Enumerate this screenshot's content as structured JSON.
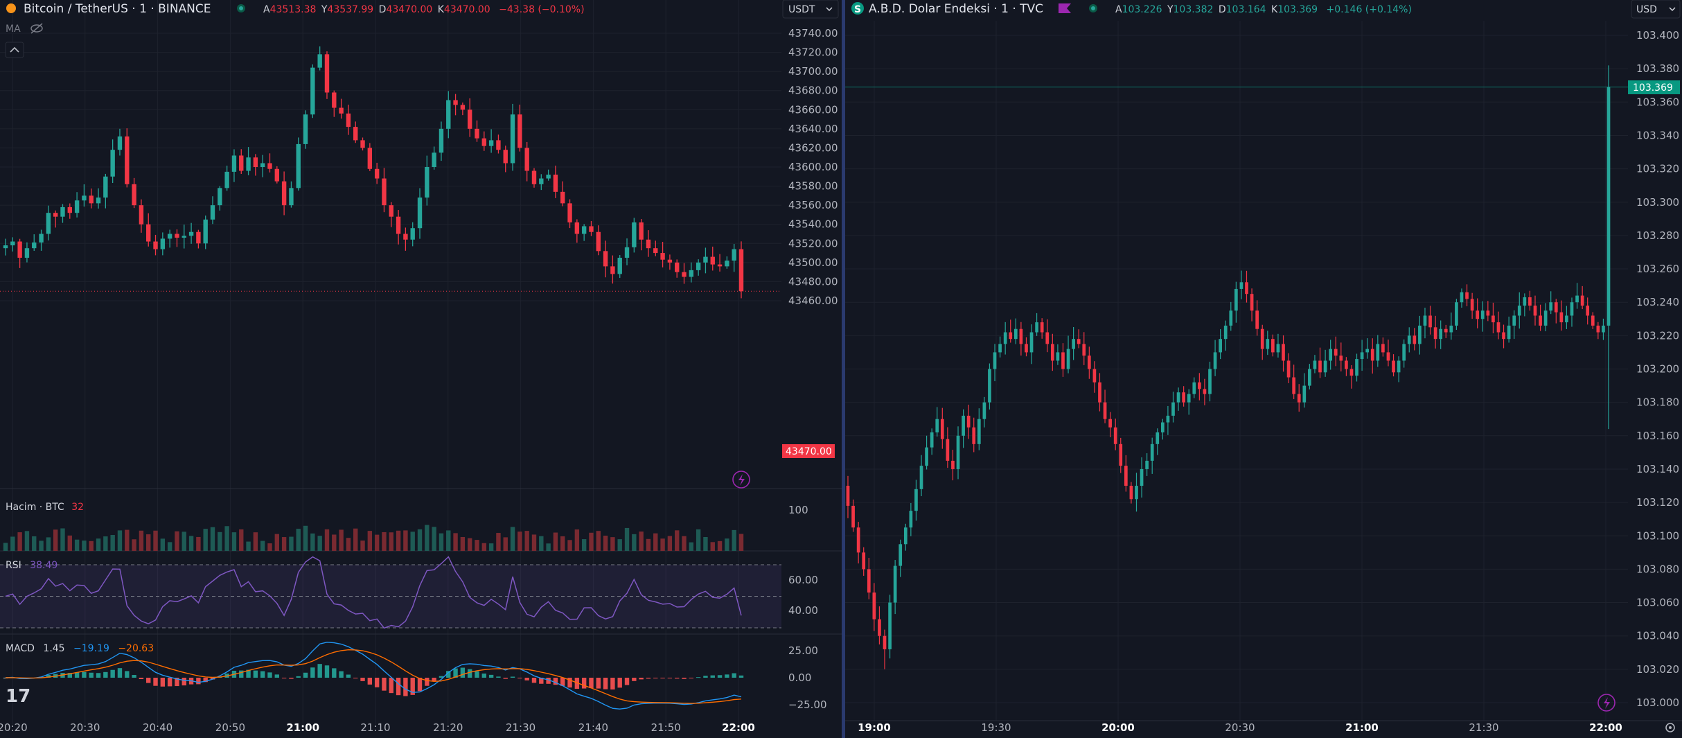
{
  "colors": {
    "bg": "#131722",
    "up": "#26a69a",
    "down": "#f23645",
    "grid": "#1e222d",
    "text": "#b2b5be",
    "rsi": "#7e57c2",
    "macd": "#2196f3",
    "signal": "#ff6d00",
    "divider": "#2a3a6e"
  },
  "left": {
    "title": "Bitcoin / TetherUS · 1 · BINANCE",
    "ohlc": {
      "o_label": "A",
      "o": "43513.38",
      "h_label": "Y",
      "h": "43537.99",
      "l_label": "D",
      "l": "43470.00",
      "c_label": "K",
      "c": "43470.00",
      "chg": "−43.38 (−0.10%)"
    },
    "currency": "USDT",
    "ma_label": "MA",
    "volume": {
      "label": "Hacim · BTC",
      "value": "32",
      "axis_label": "100"
    },
    "rsi": {
      "label": "RSI",
      "value": "38.49",
      "ticks": [
        "60.00",
        "40.00"
      ]
    },
    "macd": {
      "label": "MACD",
      "v1": "1.45",
      "v2": "−19.19",
      "v3": "−20.63",
      "ticks": [
        "25.00",
        "0.00",
        "−25.00"
      ]
    },
    "price_badge": "43470.00",
    "x_ticks": [
      "20:20",
      "20:30",
      "20:40",
      "20:50",
      "21:00",
      "21:10",
      "21:20",
      "21:30",
      "21:40",
      "21:50",
      "22:00"
    ],
    "logo": "17"
  },
  "right": {
    "title": "A.B.D. Dolar Endeksi · 1 · TVC",
    "symbol_badge": "S",
    "ohlc": {
      "o_label": "A",
      "o": "103.226",
      "h_label": "Y",
      "h": "103.382",
      "l_label": "D",
      "l": "103.164",
      "c_label": "K",
      "c": "103.369",
      "chg": "+0.146 (+0.14%)"
    },
    "currency": "USD",
    "price_badge": "103.369",
    "x_ticks": [
      "19:00",
      "19:30",
      "20:00",
      "20:30",
      "21:00",
      "21:30",
      "22:00"
    ]
  },
  "chart_data": [
    {
      "type": "candlestick",
      "title": "Bitcoin / TetherUS · 1 · BINANCE",
      "ylim": [
        43450,
        43760
      ],
      "y_ticks": [
        "43740.00",
        "43720.00",
        "43700.00",
        "43680.00",
        "43660.00",
        "43640.00",
        "43620.00",
        "43600.00",
        "43580.00",
        "43560.00",
        "43540.00",
        "43520.00",
        "43500.00",
        "43480.00",
        "43460.00"
      ],
      "x_ticks": [
        "20:20",
        "20:30",
        "20:40",
        "20:50",
        "21:00",
        "21:10",
        "21:20",
        "21:30",
        "21:40",
        "21:50",
        "22:00"
      ],
      "close": [
        43518,
        43522,
        43505,
        43515,
        43521,
        43530,
        43552,
        43548,
        43558,
        43552,
        43565,
        43570,
        43562,
        43568,
        43590,
        43618,
        43632,
        43582,
        43560,
        43540,
        43522,
        43514,
        43525,
        43530,
        43526,
        43528,
        43532,
        43520,
        43545,
        43560,
        43578,
        43595,
        43612,
        43596,
        43610,
        43600,
        43604,
        43598,
        43585,
        43560,
        43578,
        43624,
        43655,
        43704,
        43718,
        43678,
        43662,
        43656,
        43642,
        43628,
        43620,
        43598,
        43588,
        43560,
        43548,
        43530,
        43524,
        43536,
        43568,
        43600,
        43615,
        43640,
        43670,
        43665,
        43660,
        43640,
        43630,
        43622,
        43628,
        43618,
        43604,
        43655,
        43620,
        43596,
        43582,
        43588,
        43592,
        43574,
        43562,
        43542,
        43530,
        43538,
        43532,
        43512,
        43496,
        43488,
        43505,
        43516,
        43542,
        43524,
        43515,
        43510,
        43503,
        43500,
        43490,
        43485,
        43492,
        43500,
        43506,
        43498,
        43496,
        43502,
        43514,
        43470
      ],
      "open_first": 43515
    },
    {
      "type": "candlestick",
      "title": "A.B.D. Dolar Endeksi · 1 · TVC",
      "ylim": [
        102.99,
        103.41
      ],
      "y_ticks": [
        "103.400",
        "103.380",
        "103.360",
        "103.340",
        "103.320",
        "103.300",
        "103.280",
        "103.260",
        "103.240",
        "103.220",
        "103.200",
        "103.180",
        "103.160",
        "103.140",
        "103.120",
        "103.100",
        "103.080",
        "103.060",
        "103.040",
        "103.020",
        "103.000"
      ],
      "x_ticks": [
        "19:00",
        "19:30",
        "20:00",
        "20:30",
        "21:00",
        "21:30",
        "22:00"
      ],
      "close": [
        103.118,
        103.105,
        103.09,
        103.08,
        103.066,
        103.05,
        103.04,
        103.032,
        103.06,
        103.082,
        103.095,
        103.105,
        103.115,
        103.128,
        103.142,
        103.153,
        103.162,
        103.17,
        103.158,
        103.145,
        103.14,
        103.16,
        103.172,
        103.165,
        103.155,
        103.17,
        103.18,
        103.2,
        103.21,
        103.215,
        103.222,
        103.218,
        103.224,
        103.215,
        103.21,
        103.222,
        103.228,
        103.222,
        103.215,
        103.205,
        103.21,
        103.2,
        103.212,
        103.218,
        103.215,
        103.208,
        103.2,
        103.192,
        103.18,
        103.17,
        103.165,
        103.155,
        103.142,
        103.13,
        103.122,
        103.13,
        103.14,
        103.145,
        103.155,
        103.162,
        103.168,
        103.172,
        103.18,
        103.186,
        103.18,
        103.185,
        103.192,
        103.188,
        103.185,
        103.2,
        103.21,
        103.218,
        103.226,
        103.235,
        103.248,
        103.252,
        103.245,
        103.235,
        103.224,
        103.212,
        103.218,
        103.21,
        103.215,
        103.205,
        103.195,
        103.185,
        103.18,
        103.19,
        103.2,
        103.205,
        103.198,
        103.205,
        103.212,
        103.208,
        103.205,
        103.2,
        103.196,
        103.206,
        103.21,
        103.212,
        103.205,
        103.215,
        103.21,
        103.205,
        103.198,
        103.205,
        103.215,
        103.22,
        103.215,
        103.226,
        103.232,
        103.225,
        103.218,
        103.224,
        103.222,
        103.226,
        103.24,
        103.246,
        103.242,
        103.235,
        103.23,
        103.235,
        103.232,
        103.228,
        103.222,
        103.218,
        103.226,
        103.232,
        103.238,
        103.243,
        103.238,
        103.232,
        103.226,
        103.235,
        103.24,
        103.234,
        103.228,
        103.232,
        103.24,
        103.244,
        103.238,
        103.232,
        103.226,
        103.222,
        103.226,
        103.369
      ],
      "open_first": 103.13
    }
  ]
}
